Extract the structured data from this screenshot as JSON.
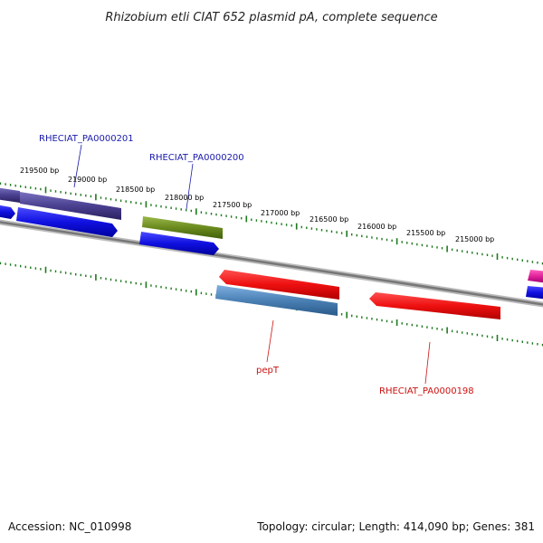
{
  "title": "Rhizobium etli CIAT 652 plasmid pA, complete sequence",
  "footer": {
    "accession": "Accession: NC_010998",
    "summary": "Topology: circular; Length: 414,090 bp; Genes: 381"
  },
  "ticks": [
    {
      "label": "219500 bp"
    },
    {
      "label": "219000 bp"
    },
    {
      "label": "218500 bp"
    },
    {
      "label": "218000 bp"
    },
    {
      "label": "217500 bp"
    },
    {
      "label": "217000 bp"
    },
    {
      "label": "216500 bp"
    },
    {
      "label": "216000 bp"
    },
    {
      "label": "215500 bp"
    },
    {
      "label": "215000 bp"
    }
  ],
  "gene_labels": [
    {
      "text": "RHECIAT_PA0000201",
      "color": "#1a1aaa"
    },
    {
      "text": "RHECIAT_PA0000200",
      "color": "#1a1aaa"
    },
    {
      "text": "pepT",
      "color": "#cc1111"
    },
    {
      "text": "RHECIAT_PA0000198",
      "color": "#cc1111"
    }
  ],
  "colors": {
    "backbone": "#888888",
    "ticks": "#1e7a1e",
    "blue": "#1010e0",
    "purple": "#4a4090",
    "olive": "#6b8a1e",
    "red": "#ee1010",
    "steel": "#4a80b4",
    "magenta": "#e0209a"
  }
}
